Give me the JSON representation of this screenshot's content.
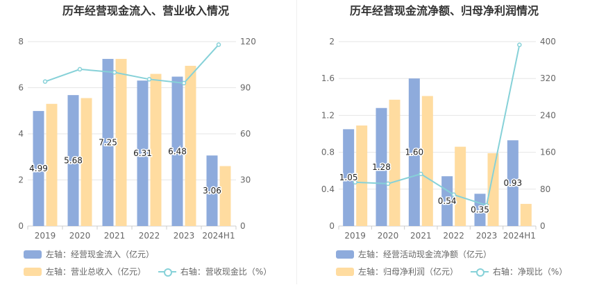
{
  "charts": [
    {
      "title": "历年经营现金流入、营业收入情况",
      "legend": {
        "bar1": "左轴：经营现金流入（亿元）",
        "bar2": "左轴：营业总收入（亿元）",
        "line": "右轴：营收现金比（%）"
      }
    },
    {
      "title": "历年经营现金流净额、归母净利润情况",
      "legend": {
        "bar1": "左轴：经营活动现金流净额（亿元）",
        "bar2": "左轴：归母净利润（亿元）",
        "line": "右轴：净现比（%）"
      }
    }
  ],
  "colors": {
    "bar1": "#8eabdc",
    "bar2": "#ffdca0",
    "line": "#86d1d8",
    "grid": "#e6e6e6",
    "axis": "#cccccc"
  },
  "chart_data": [
    {
      "type": "bar",
      "title": "历年经营现金流入、营业收入情况",
      "categories": [
        "2019",
        "2020",
        "2021",
        "2022",
        "2023",
        "2024H1"
      ],
      "series": [
        {
          "name": "左轴：经营现金流入（亿元）",
          "axis": "left",
          "kind": "bar",
          "values": [
            4.99,
            5.68,
            7.25,
            6.31,
            6.48,
            3.06
          ],
          "labels": [
            "4.99",
            "5.68",
            "7.25",
            "6.31",
            "6.48",
            "3.06"
          ]
        },
        {
          "name": "左轴：营业总收入（亿元）",
          "axis": "left",
          "kind": "bar",
          "values": [
            5.3,
            5.55,
            7.25,
            6.6,
            6.95,
            2.6
          ]
        },
        {
          "name": "右轴：营收现金比（%）",
          "axis": "right",
          "kind": "line",
          "values": [
            94,
            102,
            100,
            95.5,
            93,
            118
          ]
        }
      ],
      "y_left": {
        "ticks": [
          "0",
          "2",
          "4",
          "6",
          "8"
        ],
        "range": [
          0,
          8
        ]
      },
      "y_right": {
        "ticks": [
          "0",
          "30",
          "60",
          "90",
          "120"
        ],
        "range": [
          0,
          120
        ]
      },
      "grid": true,
      "legend_position": "bottom-left"
    },
    {
      "type": "bar",
      "title": "历年经营现金流净额、归母净利润情况",
      "categories": [
        "2019",
        "2020",
        "2021",
        "2022",
        "2023",
        "2024H1"
      ],
      "series": [
        {
          "name": "左轴：经营活动现金流净额（亿元）",
          "axis": "left",
          "kind": "bar",
          "values": [
            1.05,
            1.28,
            1.6,
            0.54,
            0.35,
            0.93
          ],
          "labels": [
            "1.05",
            "1.28",
            "1.60",
            "0.54",
            "0.35",
            "0.93"
          ]
        },
        {
          "name": "左轴：归母净利润（亿元）",
          "axis": "left",
          "kind": "bar",
          "values": [
            1.09,
            1.37,
            1.41,
            0.86,
            0.79,
            0.24
          ]
        },
        {
          "name": "右轴：净现比（%）",
          "axis": "right",
          "kind": "line",
          "values": [
            95,
            92,
            113,
            68,
            45,
            393
          ]
        }
      ],
      "y_left": {
        "ticks": [
          "0",
          "0.4",
          "0.8",
          "1.2",
          "1.6",
          "2"
        ],
        "range": [
          0,
          2
        ]
      },
      "y_right": {
        "ticks": [
          "0",
          "80",
          "160",
          "240",
          "320",
          "400"
        ],
        "range": [
          0,
          400
        ]
      },
      "grid": true,
      "legend_position": "bottom-left"
    }
  ]
}
